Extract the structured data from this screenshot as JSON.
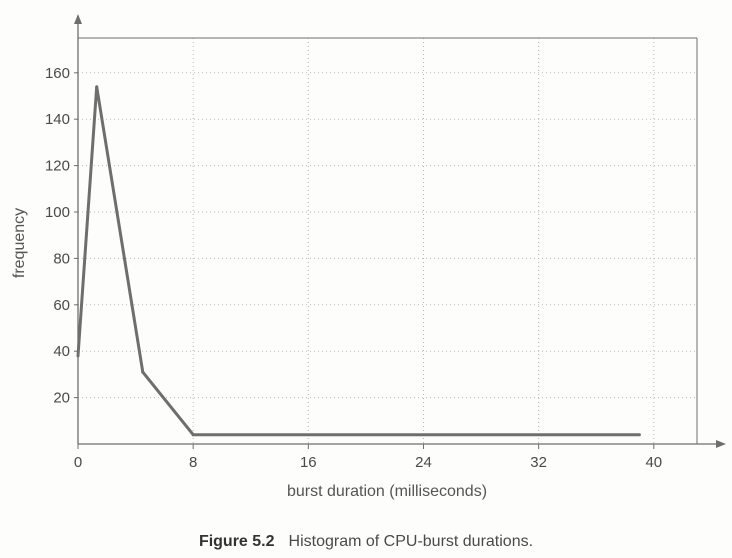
{
  "chart_data": {
    "type": "line",
    "title": "",
    "xlabel": "burst duration (milliseconds)",
    "ylabel": "frequency",
    "xlim": [
      0,
      43
    ],
    "ylim": [
      0,
      175
    ],
    "x_ticks": [
      0,
      8,
      16,
      24,
      32,
      40
    ],
    "y_ticks": [
      20,
      40,
      60,
      80,
      100,
      120,
      140,
      160
    ],
    "grid": true,
    "series": [
      {
        "x": [
          0,
          1.3,
          4.5,
          8,
          39
        ],
        "y": [
          38,
          154,
          31,
          4,
          4
        ]
      }
    ],
    "colors": {
      "line": "#6e6e6e",
      "axis": "#6e6e6e",
      "grid": "#b8b8b8"
    }
  },
  "caption": {
    "label": "Figure 5.2",
    "text": "Histogram of CPU-burst durations."
  }
}
